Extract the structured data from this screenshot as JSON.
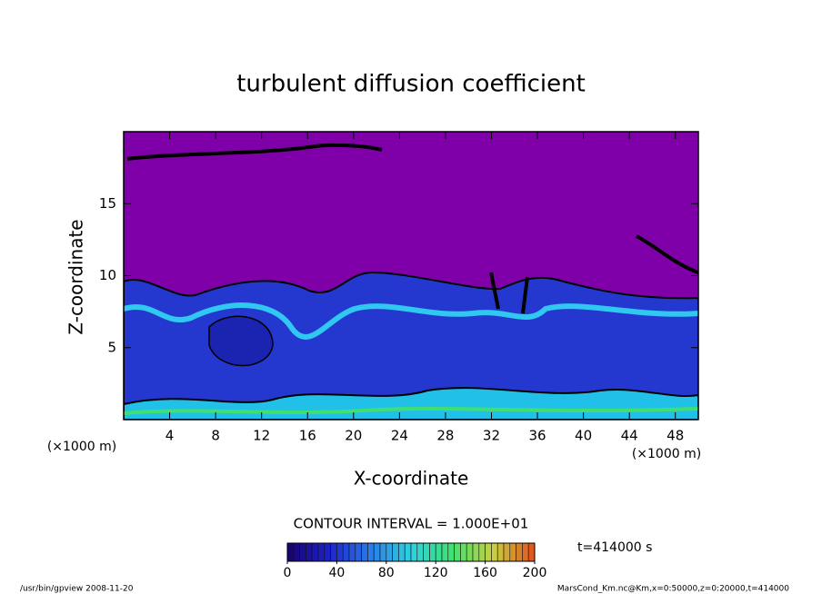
{
  "chart_data": {
    "type": "contour",
    "title": "turbulent diffusion coefficient",
    "x_label": "X-coordinate",
    "y_label": "Z-coordinate",
    "axis_unit": "(×1000 m)",
    "xlim": [
      0,
      50
    ],
    "xticks": [
      4,
      8,
      12,
      16,
      20,
      24,
      28,
      32,
      36,
      40,
      44,
      48
    ],
    "ylim": [
      0,
      20
    ],
    "yticks": [
      5,
      10,
      15
    ],
    "contour_interval": "CONTOUR INTERVAL = 1.000E+01",
    "colorbar": {
      "lim": [
        0,
        200
      ],
      "ticks": [
        0,
        40,
        80,
        120,
        160,
        200
      ],
      "colormap": [
        "#1a0070",
        "#1c22c8",
        "#2a7ae8",
        "#30d0e0",
        "#40e070",
        "#c8d040",
        "#e05020"
      ]
    },
    "time_label": "t=414000 s",
    "footer_left": "/usr/bin/gpview  2008-11-20",
    "footer_right": "MarsCond_Km.nc@Km,x=0:50000,z=0:20000,t=414000"
  }
}
